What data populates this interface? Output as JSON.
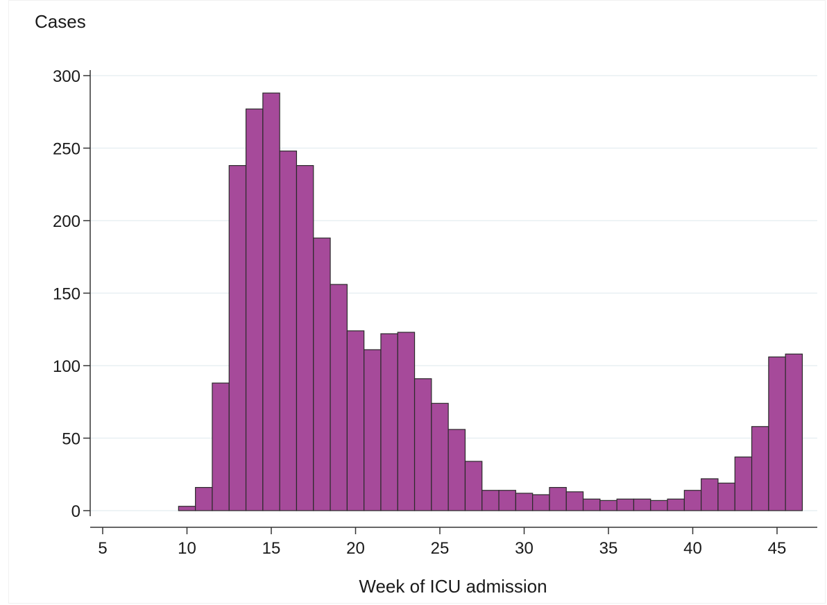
{
  "chart_data": {
    "type": "bar",
    "ylabel": "Cases",
    "xlabel": "Week of ICU admission",
    "xlim": [
      4.5,
      46.8
    ],
    "ylim": [
      0,
      300
    ],
    "xticks": [
      5,
      10,
      15,
      20,
      25,
      30,
      35,
      40,
      45
    ],
    "yticks": [
      0,
      50,
      100,
      150,
      200,
      250,
      300
    ],
    "grid": true,
    "colors": {
      "bar_fill": "#a64a9a",
      "bar_stroke": "#2a2a2a",
      "grid": "#e8eff2",
      "axis": "#333333"
    },
    "x": [
      10,
      11,
      12,
      13,
      14,
      15,
      16,
      17,
      18,
      19,
      20,
      21,
      22,
      23,
      24,
      25,
      26,
      27,
      28,
      29,
      30,
      31,
      32,
      33,
      34,
      35,
      36,
      37,
      38,
      39,
      40,
      41,
      42,
      43,
      44,
      45,
      46
    ],
    "values": [
      3,
      16,
      88,
      238,
      277,
      288,
      248,
      238,
      188,
      156,
      124,
      111,
      122,
      123,
      91,
      74,
      56,
      34,
      14,
      14,
      12,
      11,
      16,
      13,
      8,
      7,
      8,
      8,
      7,
      8,
      14,
      22,
      19,
      37,
      58,
      106,
      108
    ]
  }
}
